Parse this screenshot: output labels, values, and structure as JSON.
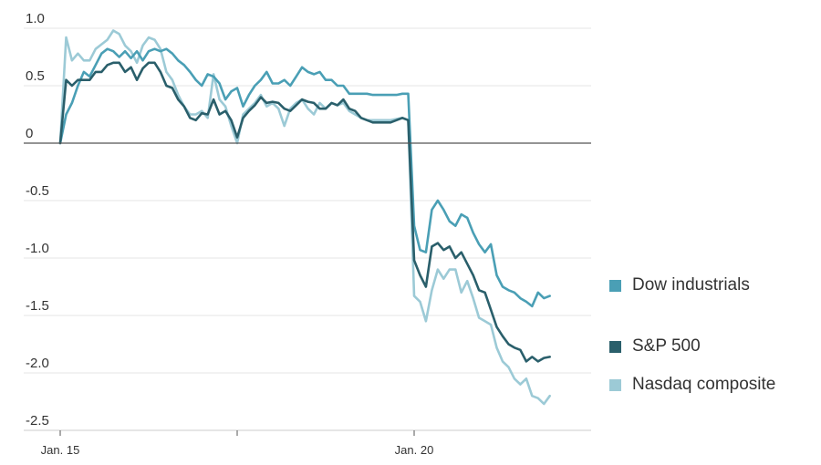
{
  "chart_data": {
    "type": "line",
    "y_ticks": [
      "1.0",
      "0.5",
      "0",
      "-0.5",
      "-1.0",
      "-1.5",
      "-2.0",
      "-2.5"
    ],
    "y_tick_values": [
      1.0,
      0.5,
      0,
      -0.5,
      -1.0,
      -1.5,
      -2.0,
      -2.5
    ],
    "ylim": [
      -2.5,
      1.0
    ],
    "x_labels": [
      "Jan. 15",
      "",
      "Jan. 20"
    ],
    "x_label_positions": [
      0,
      30,
      60
    ],
    "xlim": [
      0,
      90
    ],
    "grid": true,
    "legend_position": "right",
    "series": [
      {
        "name": "Dow industrials",
        "color": "#4a9fb5",
        "values": [
          0.0,
          0.25,
          0.35,
          0.5,
          0.62,
          0.58,
          0.68,
          0.78,
          0.82,
          0.8,
          0.75,
          0.8,
          0.74,
          0.8,
          0.72,
          0.8,
          0.82,
          0.8,
          0.82,
          0.78,
          0.72,
          0.68,
          0.62,
          0.55,
          0.5,
          0.6,
          0.58,
          0.52,
          0.38,
          0.45,
          0.48,
          0.32,
          0.42,
          0.5,
          0.55,
          0.62,
          0.52,
          0.52,
          0.55,
          0.5,
          0.58,
          0.66,
          0.62,
          0.6,
          0.62,
          0.55,
          0.55,
          0.5,
          0.5,
          0.43,
          0.43,
          0.43,
          0.43,
          0.42,
          0.42,
          0.42,
          0.42,
          0.42,
          0.43,
          0.43,
          -0.72,
          -0.93,
          -0.95,
          -0.58,
          -0.5,
          -0.58,
          -0.68,
          -0.72,
          -0.62,
          -0.65,
          -0.78,
          -0.88,
          -0.95,
          -0.88,
          -1.15,
          -1.25,
          -1.28,
          -1.3,
          -1.35,
          -1.38,
          -1.42,
          -1.3,
          -1.35,
          -1.33
        ]
      },
      {
        "name": "S&P 500",
        "color": "#2a5f6b",
        "values": [
          0.0,
          0.55,
          0.5,
          0.55,
          0.55,
          0.55,
          0.62,
          0.62,
          0.68,
          0.7,
          0.7,
          0.62,
          0.66,
          0.55,
          0.65,
          0.7,
          0.7,
          0.62,
          0.5,
          0.48,
          0.38,
          0.32,
          0.22,
          0.2,
          0.26,
          0.25,
          0.38,
          0.25,
          0.28,
          0.2,
          0.05,
          0.22,
          0.28,
          0.33,
          0.4,
          0.35,
          0.36,
          0.35,
          0.3,
          0.28,
          0.33,
          0.38,
          0.36,
          0.35,
          0.3,
          0.3,
          0.35,
          0.33,
          0.38,
          0.3,
          0.28,
          0.22,
          0.2,
          0.18,
          0.18,
          0.18,
          0.18,
          0.2,
          0.22,
          0.2,
          -1.02,
          -1.15,
          -1.25,
          -0.9,
          -0.87,
          -0.93,
          -0.9,
          -1.0,
          -0.95,
          -1.05,
          -1.15,
          -1.28,
          -1.3,
          -1.45,
          -1.6,
          -1.68,
          -1.75,
          -1.78,
          -1.8,
          -1.9,
          -1.86,
          -1.9,
          -1.87,
          -1.86
        ]
      },
      {
        "name": "Nasdaq composite",
        "color": "#9ccad6",
        "values": [
          0.0,
          0.92,
          0.72,
          0.78,
          0.72,
          0.72,
          0.82,
          0.86,
          0.9,
          0.98,
          0.95,
          0.85,
          0.8,
          0.7,
          0.85,
          0.92,
          0.9,
          0.82,
          0.62,
          0.55,
          0.42,
          0.32,
          0.25,
          0.25,
          0.28,
          0.22,
          0.6,
          0.38,
          0.32,
          0.15,
          0.0,
          0.25,
          0.3,
          0.35,
          0.42,
          0.32,
          0.35,
          0.3,
          0.15,
          0.3,
          0.35,
          0.38,
          0.3,
          0.25,
          0.35,
          0.3,
          0.35,
          0.33,
          0.35,
          0.28,
          0.25,
          0.22,
          0.2,
          0.2,
          0.2,
          0.2,
          0.2,
          0.21,
          0.22,
          0.2,
          -1.33,
          -1.38,
          -1.55,
          -1.28,
          -1.1,
          -1.18,
          -1.1,
          -1.1,
          -1.3,
          -1.2,
          -1.35,
          -1.52,
          -1.55,
          -1.58,
          -1.78,
          -1.9,
          -1.95,
          -2.05,
          -2.1,
          -2.05,
          -2.2,
          -2.22,
          -2.27,
          -2.2
        ]
      }
    ]
  }
}
